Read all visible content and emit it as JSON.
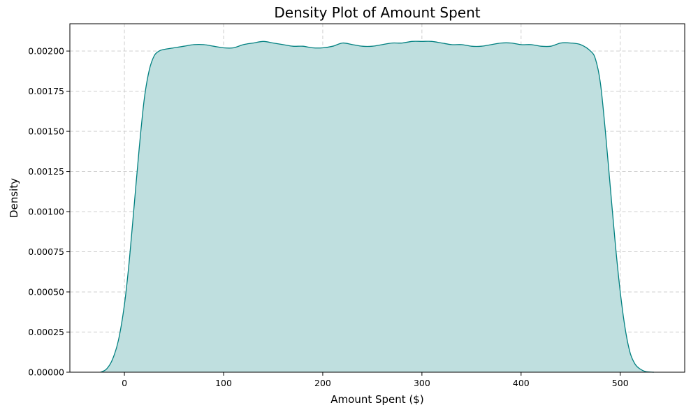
{
  "chart_data": {
    "type": "area",
    "title": "Density Plot of Amount Spent",
    "xlabel": "Amount Spent ($)",
    "ylabel": "Density",
    "xlim": [
      -55,
      565
    ],
    "ylim": [
      0,
      0.00217
    ],
    "xticks": [
      0,
      100,
      200,
      300,
      400,
      500
    ],
    "xtick_labels": [
      "0",
      "100",
      "200",
      "300",
      "400",
      "500"
    ],
    "yticks": [
      0,
      0.00025,
      0.0005,
      0.00075,
      0.001,
      0.00125,
      0.0015,
      0.00175,
      0.002
    ],
    "ytick_labels": [
      "0.00000",
      "0.00025",
      "0.00050",
      "0.00075",
      "0.00100",
      "0.00125",
      "0.00150",
      "0.00175",
      "0.00200"
    ],
    "grid": true,
    "line_color": "#008080",
    "fill_color": "#bfdfdf",
    "series": [
      {
        "x": [
          -24,
          -18,
          -12,
          -6,
          0,
          5,
          10,
          15,
          20,
          25,
          30,
          35,
          40,
          50,
          60,
          70,
          80,
          90,
          100,
          110,
          120,
          130,
          140,
          150,
          160,
          170,
          180,
          190,
          200,
          210,
          220,
          230,
          240,
          250,
          260,
          270,
          280,
          290,
          300,
          310,
          320,
          330,
          340,
          350,
          360,
          370,
          380,
          390,
          400,
          410,
          420,
          430,
          440,
          450,
          460,
          470,
          475,
          480,
          485,
          490,
          495,
          500,
          505,
          510,
          515,
          520,
          525,
          530,
          534
        ],
        "y": [
          0.0,
          2e-05,
          8e-05,
          0.0002,
          0.00042,
          0.0007,
          0.00105,
          0.0014,
          0.0017,
          0.00188,
          0.00197,
          0.002,
          0.00201,
          0.00202,
          0.00203,
          0.00204,
          0.00204,
          0.00203,
          0.00202,
          0.00202,
          0.00204,
          0.00205,
          0.00206,
          0.00205,
          0.00204,
          0.00203,
          0.00203,
          0.00202,
          0.00202,
          0.00203,
          0.00205,
          0.00204,
          0.00203,
          0.00203,
          0.00204,
          0.00205,
          0.00205,
          0.00206,
          0.00206,
          0.00206,
          0.00205,
          0.00204,
          0.00204,
          0.00203,
          0.00203,
          0.00204,
          0.00205,
          0.00205,
          0.00204,
          0.00204,
          0.00203,
          0.00203,
          0.00205,
          0.00205,
          0.00204,
          0.002,
          0.00195,
          0.0018,
          0.0015,
          0.00115,
          0.0008,
          0.0005,
          0.00027,
          0.00012,
          5e-05,
          2e-05,
          5e-06,
          1e-06,
          0.0
        ]
      }
    ]
  }
}
